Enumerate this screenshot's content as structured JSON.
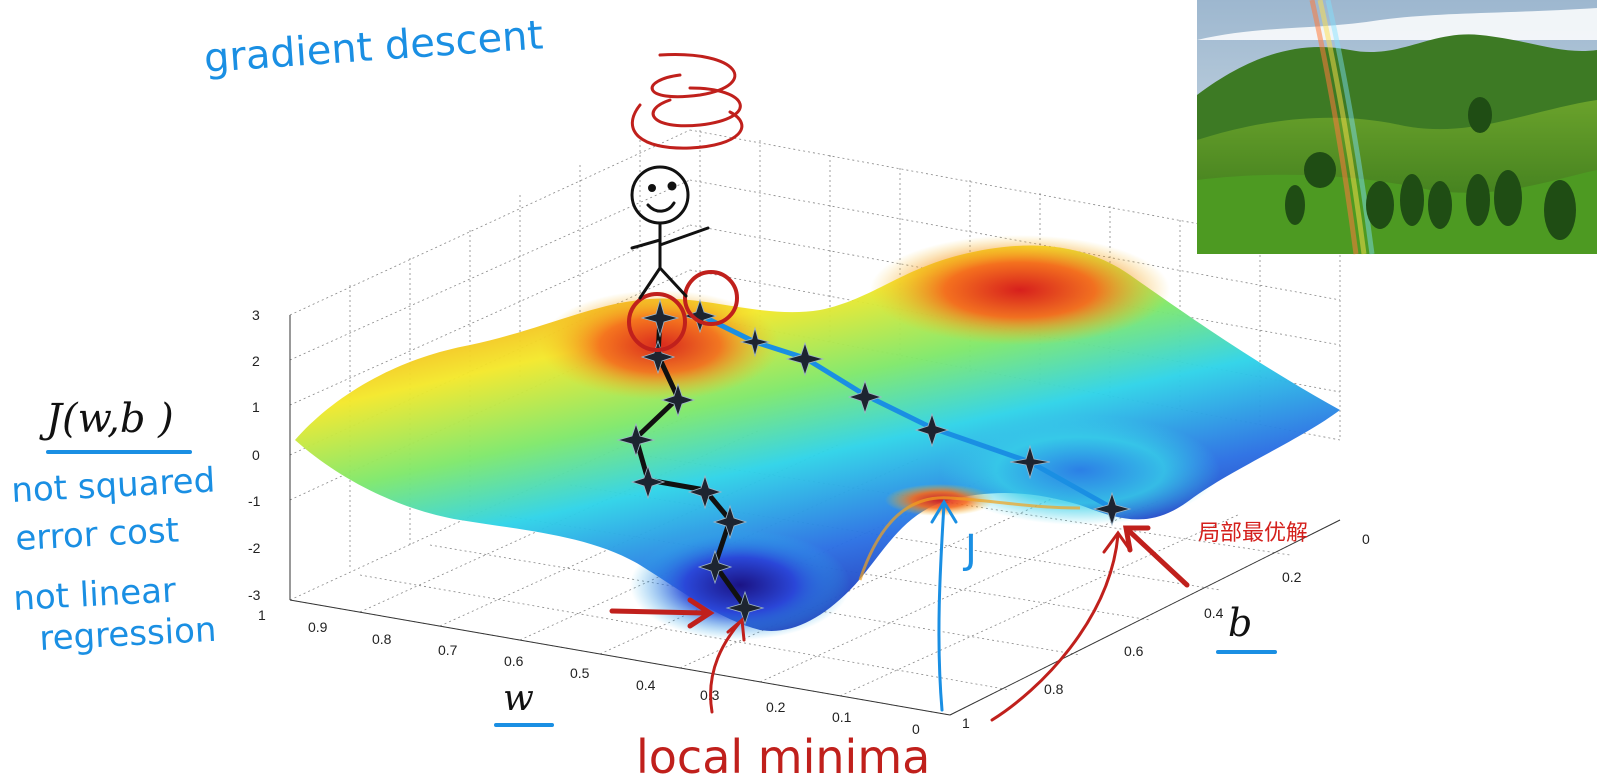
{
  "annotations": {
    "gradient_descent": "gradient descent",
    "cost_fn": "J(w,b )",
    "not_squared_1": "not squared",
    "not_squared_2": "error cost",
    "not_linear_1": "not linear",
    "not_linear_2": "regression",
    "w_label": "w",
    "b_label": "b",
    "j_label": "J",
    "local_minima": "local minima",
    "chinese_note": "局部最优解"
  },
  "axes": {
    "z_ticks": [
      "3",
      "2",
      "1",
      "0",
      "-1",
      "-2",
      "-3"
    ],
    "w_ticks": [
      "1",
      "0.9",
      "0.8",
      "0.7",
      "0.6",
      "0.5",
      "0.4",
      "0.3",
      "0.2",
      "0.1",
      "0"
    ],
    "b_ticks": [
      "0",
      "0.2",
      "0.4",
      "0.6",
      "0.8",
      "1"
    ]
  },
  "colors": {
    "annotation_blue": "#1a8fe3",
    "annotation_red": "#c0201c",
    "path_blue": "#1a8fe3",
    "path_black": "#111111"
  },
  "photo": {
    "description_icon": "landscape-rainbow-icon"
  }
}
